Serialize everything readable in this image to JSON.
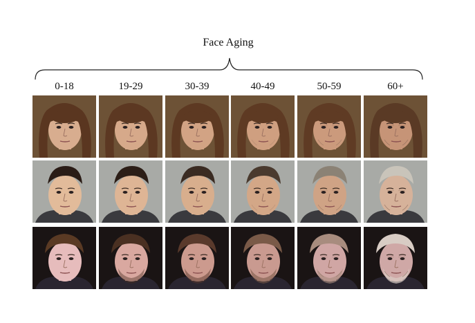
{
  "figure": {
    "title": "Face Aging",
    "age_groups": [
      "0-18",
      "19-29",
      "30-39",
      "40-49",
      "50-59",
      "60+"
    ],
    "rows": [
      {
        "subject": "woman",
        "background": "#6d5236",
        "skin": [
          "#d8ad8f",
          "#d6a98a",
          "#d2a384",
          "#cf9f80",
          "#cb9a7c",
          "#c69477"
        ],
        "hair": [
          "#5a3620",
          "#5c3822",
          "#5d3922",
          "#5e3a23",
          "#5f3b24",
          "#5a3a25"
        ],
        "clothing": "#6d5236"
      },
      {
        "subject": "young-man",
        "background": "#a8aaa6",
        "skin": [
          "#e2bb9a",
          "#deb595",
          "#d8ae8d",
          "#d3a787",
          "#cfa385",
          "#d6b29a"
        ],
        "hair": [
          "#2a1c16",
          "#2c1e17",
          "#3a2b22",
          "#4a3a2e",
          "#8b8275",
          "#c9c4ba"
        ],
        "clothing": "#3a3a3e"
      },
      {
        "subject": "boy",
        "background": "#1a1414",
        "skin": [
          "#e6bcbc",
          "#d9a8a0",
          "#cc9a8e",
          "#c99a90",
          "#d0a6a4",
          "#cfa8a6"
        ],
        "hair": [
          "#5a3a24",
          "#4a3022",
          "#5a3a2c",
          "#7a5a48",
          "#a88c7e",
          "#d8ccc4"
        ],
        "clothing": "#2a2530"
      }
    ]
  }
}
